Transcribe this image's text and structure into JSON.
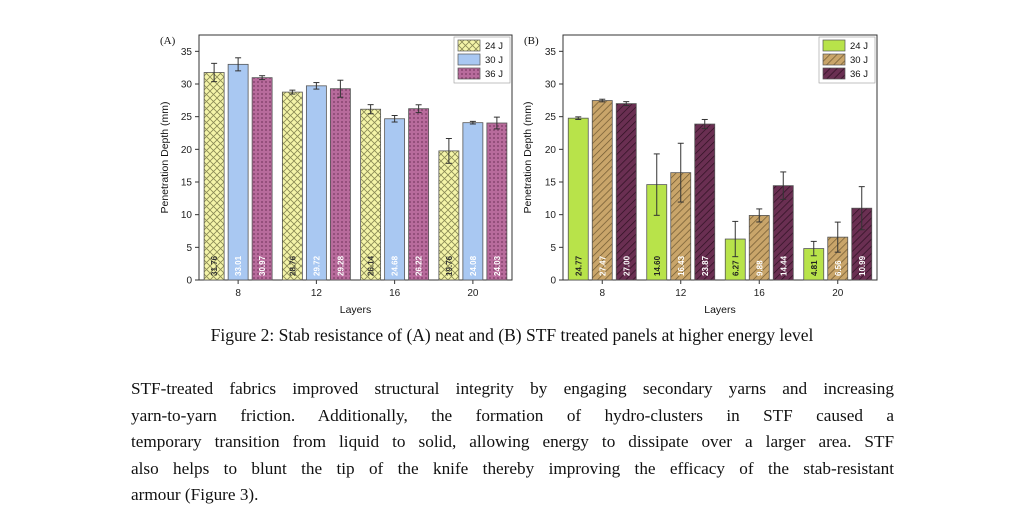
{
  "figure": {
    "caption": "Figure 2: Stab resistance of (A) neat and (B) STF treated panels at higher energy level"
  },
  "paragraph": {
    "lines": [
      "STF-treated fabrics improved structural integrity by engaging secondary yarns and increasing",
      "yarn-to-yarn friction. Additionally, the formation of hydro-clusters in STF caused a",
      "temporary transition from liquid to solid, allowing energy to dissipate over a larger area. STF",
      "also helps to blunt the tip of the knife thereby improving the efficacy of the stab-resistant",
      "armour (Figure 3)."
    ]
  },
  "chart_data": [
    {
      "panel_label": "(A)",
      "type": "bar",
      "xlabel": "Layers",
      "ylabel": "Penetration Depth (mm)",
      "ylim": [
        0,
        37.5
      ],
      "yticks": [
        0,
        5,
        10,
        15,
        20,
        25,
        30,
        35
      ],
      "categories": [
        "8",
        "12",
        "16",
        "20"
      ],
      "legend_position": "top-right",
      "series": [
        {
          "name": "24 J",
          "values": [
            31.76,
            28.76,
            26.14,
            19.76
          ],
          "errors": [
            1.4,
            0.3,
            0.7,
            1.9
          ],
          "color": "#f4f4a8",
          "pattern": "crosshatch"
        },
        {
          "name": "30 J",
          "values": [
            33.01,
            29.72,
            24.68,
            24.08
          ],
          "errors": [
            1.0,
            0.5,
            0.5,
            0.2
          ],
          "color": "#a9c8f2",
          "pattern": "none"
        },
        {
          "name": "36 J",
          "values": [
            30.97,
            29.28,
            26.22,
            24.03
          ],
          "errors": [
            0.3,
            1.3,
            0.6,
            0.9
          ],
          "color": "#b86b9c",
          "pattern": "dots"
        }
      ],
      "data_labels": [
        [
          "31.76",
          "28.76",
          "26.14",
          "19.76"
        ],
        [
          "33.01",
          "29.72",
          "24.68",
          "24.08"
        ],
        [
          "30.97",
          "29.28",
          "26.22",
          "24.03"
        ]
      ]
    },
    {
      "panel_label": "(B)",
      "type": "bar",
      "xlabel": "Layers",
      "ylabel": "Penetration Depth (mm)",
      "ylim": [
        0,
        37.5
      ],
      "yticks": [
        0,
        5,
        10,
        15,
        20,
        25,
        30,
        35
      ],
      "categories": [
        "8",
        "12",
        "16",
        "20"
      ],
      "legend_position": "top-right",
      "series": [
        {
          "name": "24 J",
          "values": [
            24.77,
            14.6,
            6.27,
            4.81
          ],
          "errors": [
            0.2,
            4.7,
            2.7,
            1.1
          ],
          "color": "#b8e34a",
          "pattern": "none"
        },
        {
          "name": "30 J",
          "values": [
            27.47,
            16.43,
            9.88,
            6.56
          ],
          "errors": [
            0.2,
            4.5,
            1.0,
            2.3
          ],
          "color": "#c4a46c",
          "pattern": "diagonal"
        },
        {
          "name": "36 J",
          "values": [
            27.0,
            23.87,
            14.44,
            10.99
          ],
          "errors": [
            0.3,
            0.7,
            2.1,
            3.3
          ],
          "color": "#5e2a48",
          "pattern": "diagonal"
        }
      ],
      "data_labels": [
        [
          "24.77",
          "14.60",
          "6.27",
          "4.81"
        ],
        [
          "27.47",
          "16.43",
          "9.88",
          "6.56"
        ],
        [
          "27.00",
          "23.87",
          "14.44",
          "10.99"
        ]
      ]
    }
  ]
}
